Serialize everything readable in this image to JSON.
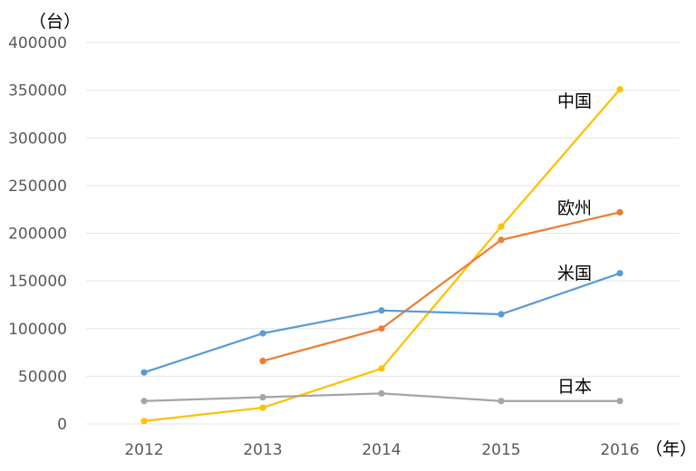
{
  "chart_data": {
    "type": "line",
    "categories": [
      "2012",
      "2013",
      "2014",
      "2015",
      "2016"
    ],
    "y_unit_label": "（台）",
    "x_unit_label": "（年）",
    "ylim": [
      0,
      400000
    ],
    "y_ticks": [
      "0",
      "50000",
      "100000",
      "150000",
      "200000",
      "250000",
      "300000",
      "350000",
      "400000"
    ],
    "grid": true,
    "series": [
      {
        "name": "中国",
        "color": "#FFC000",
        "values": [
          3000,
          17000,
          58000,
          207000,
          351000
        ]
      },
      {
        "name": "欧州",
        "color": "#ED7D31",
        "values": [
          null,
          66000,
          100000,
          193000,
          222000
        ]
      },
      {
        "name": "米国",
        "color": "#5B9BD5",
        "values": [
          54000,
          95000,
          119000,
          115000,
          158000
        ]
      },
      {
        "name": "日本",
        "color": "#A5A5A5",
        "values": [
          24000,
          28000,
          32000,
          24000,
          24000
        ]
      }
    ]
  }
}
